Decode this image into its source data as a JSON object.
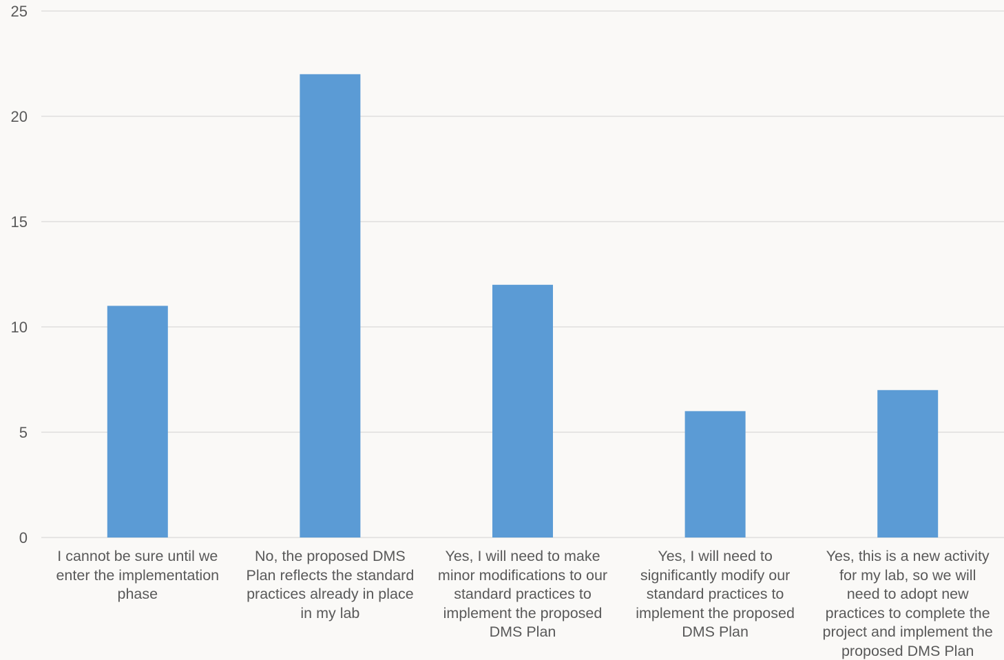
{
  "chart_data": {
    "type": "bar",
    "categories": [
      "I cannot be sure until we enter the implementation phase",
      "No, the proposed DMS Plan reflects the standard practices already in place in my lab",
      "Yes, I will need to make minor modifications to our standard practices to implement the proposed DMS Plan",
      "Yes, I will need to significantly modify our standard practices to implement the proposed DMS Plan",
      "Yes, this is a new activity for my lab, so we will need to adopt new practices to complete the project and implement the proposed DMS Plan"
    ],
    "category_lines": [
      [
        "I cannot be sure until we",
        "enter the implementation",
        "phase"
      ],
      [
        "No, the proposed DMS",
        "Plan reflects the standard",
        "practices already in place",
        "in my lab"
      ],
      [
        "Yes, I will need to make",
        "minor modifications to our",
        "standard practices to",
        "implement the proposed",
        "DMS Plan"
      ],
      [
        "Yes, I will need to",
        "significantly modify our",
        "standard practices to",
        "implement the proposed",
        "DMS Plan"
      ],
      [
        "Yes, this is a new activity",
        "for my lab, so we will",
        "need to adopt new",
        "practices to complete the",
        "project and implement the",
        "proposed DMS Plan"
      ]
    ],
    "values": [
      11,
      22,
      12,
      6,
      7
    ],
    "ylim": [
      0,
      25
    ],
    "yticks": [
      0,
      5,
      10,
      15,
      20,
      25
    ],
    "title": "",
    "xlabel": "",
    "ylabel": "",
    "grid": true,
    "legend": "none",
    "colors": {
      "bar": "#5b9bd5",
      "grid": "#d9d9d9",
      "text": "#595959",
      "background": "#faf9f7"
    }
  }
}
